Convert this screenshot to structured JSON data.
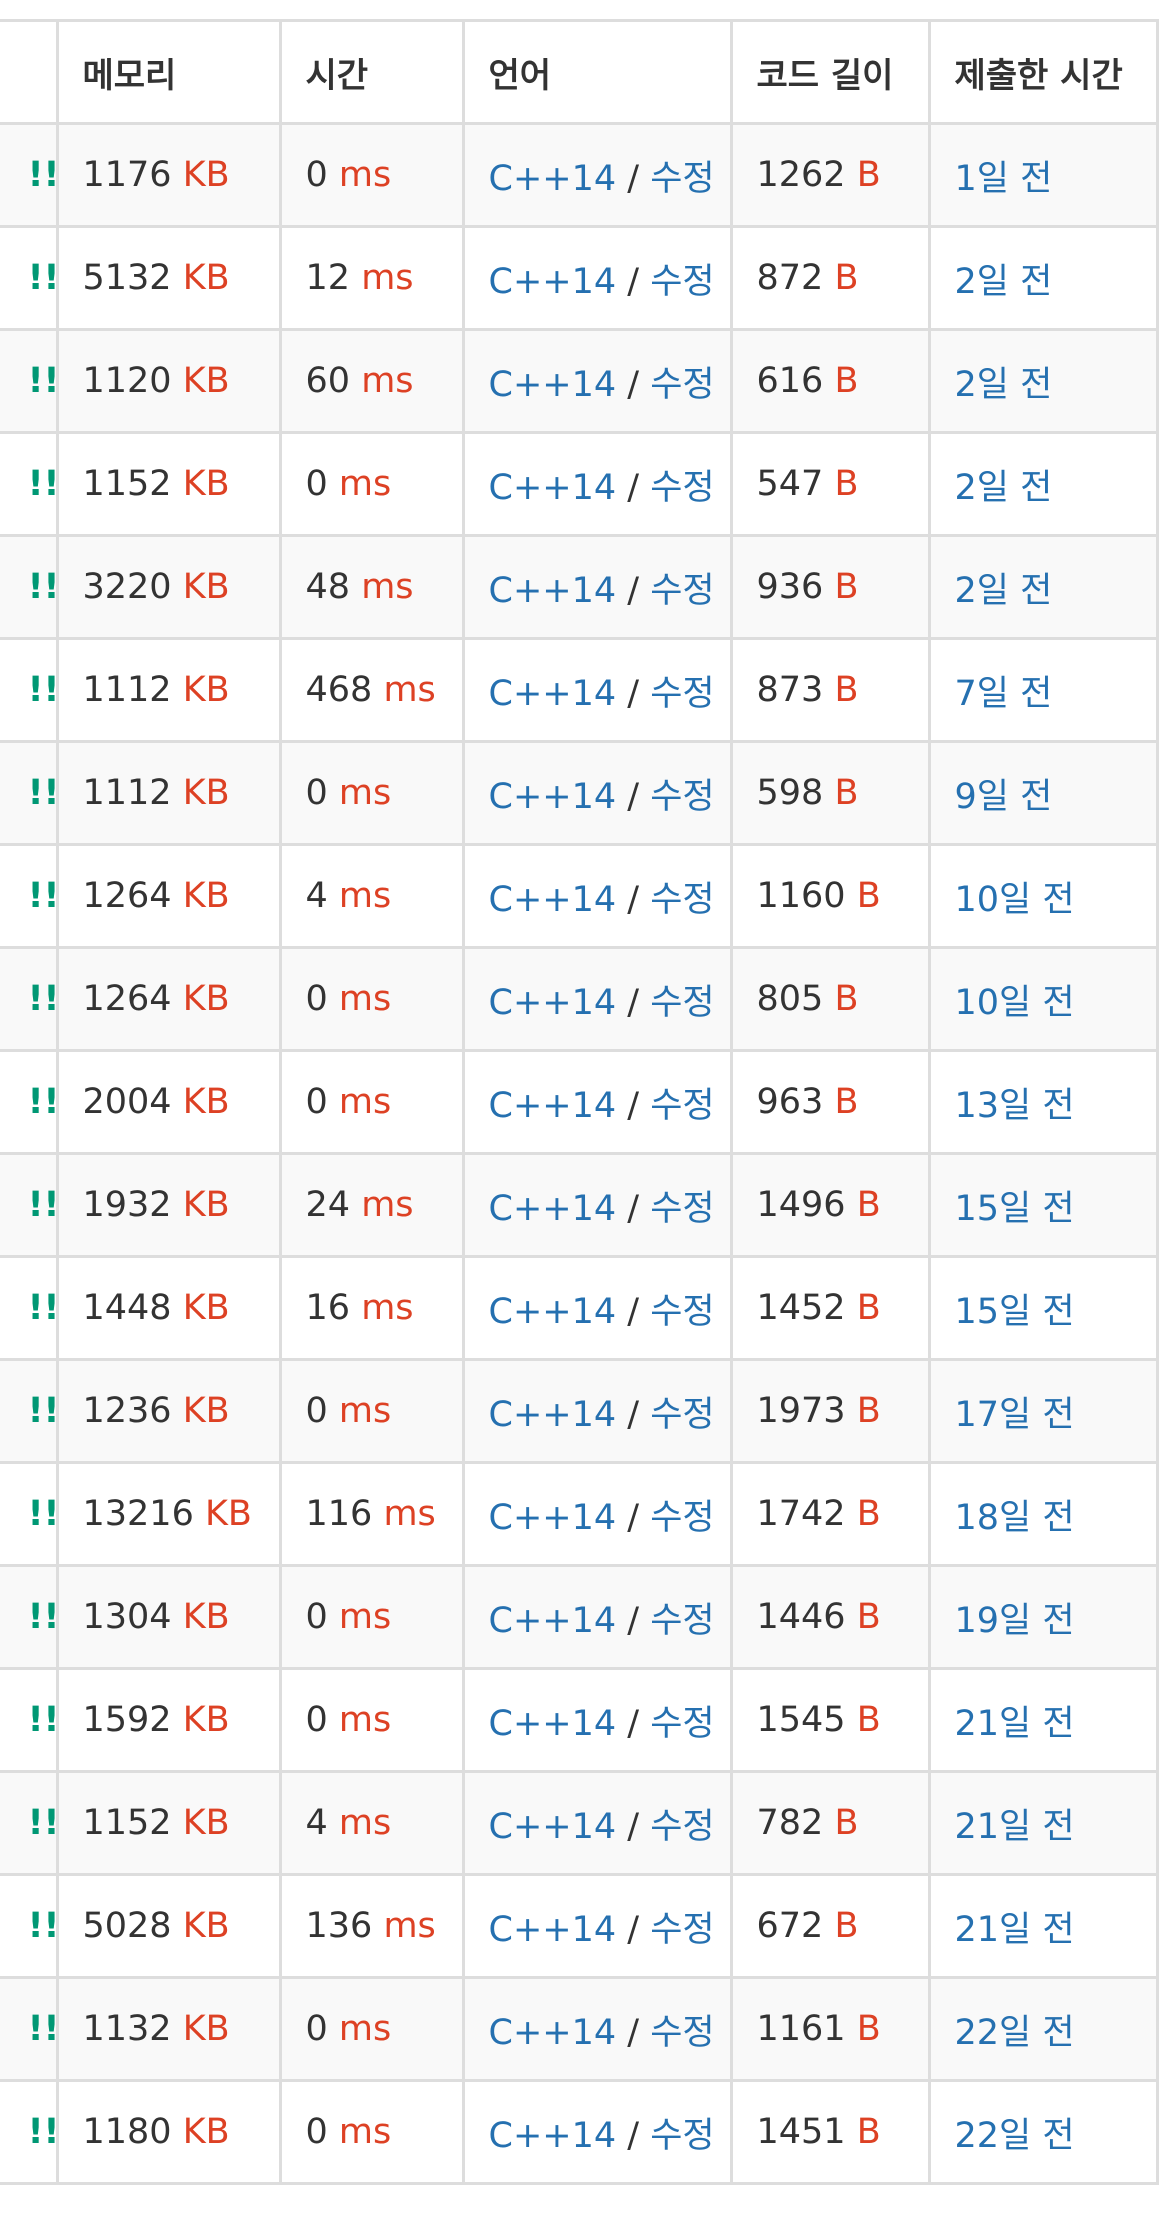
{
  "headers": {
    "result": "",
    "memory": "메모리",
    "time": "시간",
    "language": "언어",
    "code_length": "코드 길이",
    "submitted": "제출한 시간"
  },
  "units": {
    "memory": "KB",
    "time": "ms",
    "code": "B"
  },
  "colors": {
    "unit": "#dd4124",
    "link": "#2570b0",
    "result": "#009874",
    "border": "#dddddd",
    "stripe": "#f9f9f9",
    "text": "#333333"
  },
  "rows": [
    {
      "result": "!!",
      "memory": "1176",
      "time": "0",
      "lang": "C++14",
      "edit": "수정",
      "code": "1262",
      "ago": "1일 전"
    },
    {
      "result": "!!",
      "memory": "5132",
      "time": "12",
      "lang": "C++14",
      "edit": "수정",
      "code": "872",
      "ago": "2일 전"
    },
    {
      "result": "!!",
      "memory": "1120",
      "time": "60",
      "lang": "C++14",
      "edit": "수정",
      "code": "616",
      "ago": "2일 전"
    },
    {
      "result": "!!",
      "memory": "1152",
      "time": "0",
      "lang": "C++14",
      "edit": "수정",
      "code": "547",
      "ago": "2일 전"
    },
    {
      "result": "!!",
      "memory": "3220",
      "time": "48",
      "lang": "C++14",
      "edit": "수정",
      "code": "936",
      "ago": "2일 전"
    },
    {
      "result": "!!",
      "memory": "1112",
      "time": "468",
      "lang": "C++14",
      "edit": "수정",
      "code": "873",
      "ago": "7일 전"
    },
    {
      "result": "!!",
      "memory": "1112",
      "time": "0",
      "lang": "C++14",
      "edit": "수정",
      "code": "598",
      "ago": "9일 전"
    },
    {
      "result": "!!",
      "memory": "1264",
      "time": "4",
      "lang": "C++14",
      "edit": "수정",
      "code": "1160",
      "ago": "10일 전"
    },
    {
      "result": "!!",
      "memory": "1264",
      "time": "0",
      "lang": "C++14",
      "edit": "수정",
      "code": "805",
      "ago": "10일 전"
    },
    {
      "result": "!!",
      "memory": "2004",
      "time": "0",
      "lang": "C++14",
      "edit": "수정",
      "code": "963",
      "ago": "13일 전"
    },
    {
      "result": "!!",
      "memory": "1932",
      "time": "24",
      "lang": "C++14",
      "edit": "수정",
      "code": "1496",
      "ago": "15일 전"
    },
    {
      "result": "!!",
      "memory": "1448",
      "time": "16",
      "lang": "C++14",
      "edit": "수정",
      "code": "1452",
      "ago": "15일 전"
    },
    {
      "result": "!!",
      "memory": "1236",
      "time": "0",
      "lang": "C++14",
      "edit": "수정",
      "code": "1973",
      "ago": "17일 전"
    },
    {
      "result": "!!",
      "memory": "13216",
      "time": "116",
      "lang": "C++14",
      "edit": "수정",
      "code": "1742",
      "ago": "18일 전"
    },
    {
      "result": "!!",
      "memory": "1304",
      "time": "0",
      "lang": "C++14",
      "edit": "수정",
      "code": "1446",
      "ago": "19일 전"
    },
    {
      "result": "!!",
      "memory": "1592",
      "time": "0",
      "lang": "C++14",
      "edit": "수정",
      "code": "1545",
      "ago": "21일 전"
    },
    {
      "result": "!!",
      "memory": "1152",
      "time": "4",
      "lang": "C++14",
      "edit": "수정",
      "code": "782",
      "ago": "21일 전"
    },
    {
      "result": "!!",
      "memory": "5028",
      "time": "136",
      "lang": "C++14",
      "edit": "수정",
      "code": "672",
      "ago": "21일 전"
    },
    {
      "result": "!!",
      "memory": "1132",
      "time": "0",
      "lang": "C++14",
      "edit": "수정",
      "code": "1161",
      "ago": "22일 전"
    },
    {
      "result": "!!",
      "memory": "1180",
      "time": "0",
      "lang": "C++14",
      "edit": "수정",
      "code": "1451",
      "ago": "22일 전"
    }
  ]
}
